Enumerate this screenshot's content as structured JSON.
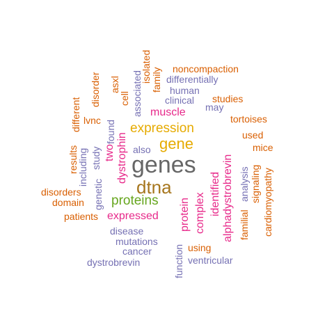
{
  "words": {
    "genes": "genes",
    "dtna": "dtna",
    "gene": "gene",
    "expression": "expression",
    "proteins": "proteins",
    "expressed": "expressed",
    "protein": "protein",
    "dystrophin": "dystrophin",
    "muscle": "muscle",
    "identified": "identified",
    "complex": "complex",
    "alphadystrobrevin": "alphadystrobrevin",
    "two": "two",
    "clinical": "clinical",
    "human": "human",
    "also": "also",
    "may": "may",
    "differentially": "differentially",
    "associated": "associated",
    "found": "found",
    "study": "study",
    "including": "including",
    "genetic": "genetic",
    "analysis": "analysis",
    "disease": "disease",
    "mutations": "mutations",
    "cancer": "cancer",
    "dystrobrevin": "dystrobrevin",
    "ventricular": "ventricular",
    "function": "function",
    "noncompaction": "noncompaction",
    "isolated": "isolated",
    "family": "family",
    "asxl": "asxl",
    "cell": "cell",
    "disorder": "disorder",
    "different": "different",
    "results": "results",
    "lvnc": "lvnc",
    "studies": "studies",
    "tortoises": "tortoises",
    "used": "used",
    "mice": "mice",
    "signaling": "signaling",
    "cardiomyopathy": "cardiomyopathy",
    "familial": "familial",
    "disorders": "disorders",
    "domain": "domain",
    "patients": "patients",
    "using": "using"
  },
  "palette": {
    "orange": "#d95f02",
    "purple": "#7570b3",
    "pink": "#e7298a",
    "gold": "#e6ab02",
    "green": "#66a61e",
    "brown": "#a6761d",
    "grey": "#666666"
  }
}
